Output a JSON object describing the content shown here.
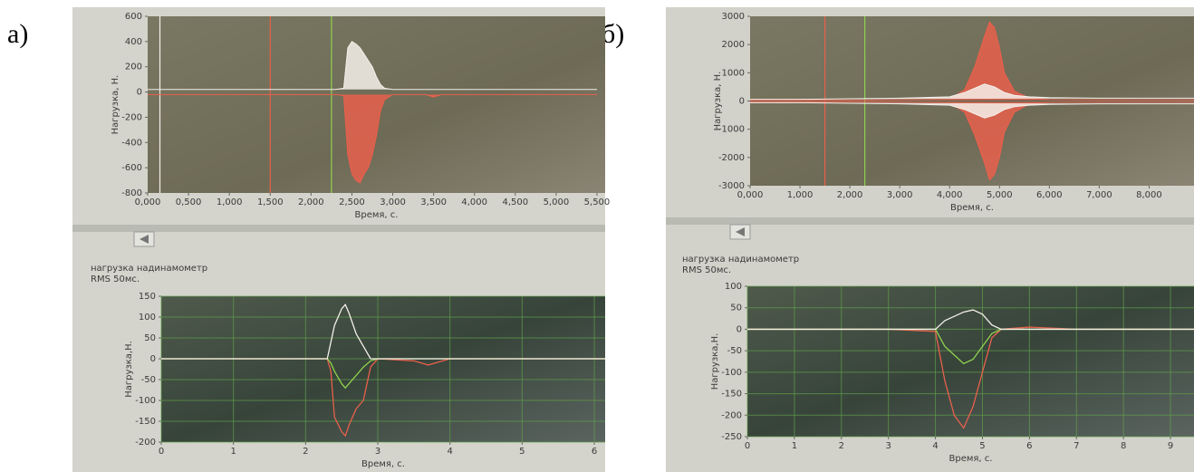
{
  "panel_labels": [
    "а)",
    "б)"
  ],
  "chart_data": [
    {
      "type": "area",
      "ylabel": "Нагрузка, Н.",
      "xlabel": "Время, с.",
      "grid": false,
      "xlim": [
        0,
        5.6
      ],
      "ylim": [
        -800,
        600
      ],
      "xticks": [
        {
          "value": 0,
          "label": "0,000"
        },
        {
          "value": 0.5,
          "label": "0,500"
        },
        {
          "value": 1,
          "label": "1,000"
        },
        {
          "value": 1.5,
          "label": "1,500"
        },
        {
          "value": 2,
          "label": "2,000"
        },
        {
          "value": 2.5,
          "label": "2,500"
        },
        {
          "value": 3,
          "label": "3,000"
        },
        {
          "value": 3.5,
          "label": "3,500"
        },
        {
          "value": 4,
          "label": "4,000"
        },
        {
          "value": 4.5,
          "label": "4,500"
        },
        {
          "value": 5,
          "label": "5,000"
        },
        {
          "value": 5.5,
          "label": "5,500"
        }
      ],
      "yticks": [
        600,
        400,
        200,
        0,
        -200,
        -400,
        -600,
        -800
      ],
      "cursors": [
        {
          "x": 0.15,
          "color": "#f4f0ea"
        },
        {
          "x": 1.5,
          "color": "#e8604c"
        },
        {
          "x": 2.25,
          "color": "#8fd14f"
        }
      ],
      "x": [
        0,
        0.5,
        1,
        1.5,
        2,
        2.3,
        2.4,
        2.45,
        2.5,
        2.55,
        2.6,
        2.65,
        2.7,
        2.75,
        2.8,
        2.85,
        2.9,
        3,
        3.4,
        3.5,
        3.6,
        4,
        4.5,
        5,
        5.5
      ],
      "series": [
        {
          "color": "#e8604c",
          "values": [
            -20,
            -20,
            -20,
            -20,
            -20,
            -20,
            -30,
            -500,
            -650,
            -700,
            -720,
            -650,
            -600,
            -500,
            -350,
            -150,
            -60,
            -20,
            -20,
            -40,
            -20,
            -20,
            -20,
            -20,
            -20
          ]
        },
        {
          "color": "#f4f0ea",
          "values": [
            20,
            20,
            20,
            20,
            20,
            20,
            30,
            350,
            400,
            380,
            350,
            300,
            250,
            200,
            120,
            60,
            30,
            20,
            20,
            20,
            20,
            20,
            20,
            20,
            20
          ]
        }
      ]
    },
    {
      "type": "area",
      "ylabel": "Нагрузка, Н.",
      "xlabel": "Время, с.",
      "grid": false,
      "xlim": [
        0,
        8.9
      ],
      "ylim": [
        -3000,
        3000
      ],
      "xticks": [
        {
          "value": 0,
          "label": "0,000"
        },
        {
          "value": 1,
          "label": "1,000"
        },
        {
          "value": 2,
          "label": "2,000"
        },
        {
          "value": 3,
          "label": "3,000"
        },
        {
          "value": 4,
          "label": "4,000"
        },
        {
          "value": 5,
          "label": "5,000"
        },
        {
          "value": 6,
          "label": "6,000"
        },
        {
          "value": 7,
          "label": "7,000"
        },
        {
          "value": 8,
          "label": "8,000"
        }
      ],
      "yticks": [
        3000,
        2000,
        1000,
        0,
        -1000,
        -2000,
        -3000
      ],
      "cursors": [
        {
          "x": 1.5,
          "color": "#e8604c"
        },
        {
          "x": 2.3,
          "color": "#8fd14f"
        }
      ],
      "x": [
        0,
        1,
        2,
        3,
        4,
        4.3,
        4.5,
        4.7,
        4.8,
        4.9,
        5,
        5.1,
        5.3,
        5.6,
        6,
        7,
        8,
        8.9
      ],
      "series": [
        {
          "color": "#e8604c",
          "values": [
            -30,
            -30,
            -30,
            -40,
            -60,
            -400,
            -1200,
            -2200,
            -2800,
            -2600,
            -2000,
            -1100,
            -400,
            -100,
            -50,
            -40,
            -40,
            -40
          ]
        },
        {
          "color": "#e8604c",
          "values": [
            30,
            30,
            30,
            40,
            60,
            400,
            1200,
            2300,
            2800,
            2600,
            1900,
            1000,
            350,
            100,
            50,
            40,
            40,
            40
          ]
        },
        {
          "color": "#f4f0ea",
          "values": [
            60,
            60,
            80,
            100,
            150,
            300,
            450,
            600,
            550,
            500,
            400,
            300,
            200,
            150,
            120,
            100,
            100,
            100
          ]
        },
        {
          "color": "#f4f0ea",
          "values": [
            -60,
            -60,
            -80,
            -100,
            -150,
            -300,
            -450,
            -600,
            -550,
            -500,
            -400,
            -300,
            -200,
            -150,
            -120,
            -100,
            -100,
            -100
          ]
        }
      ]
    },
    {
      "type": "line",
      "subtitle": [
        "нагрузка надинамометр",
        "RMS 50мс."
      ],
      "ylabel": "Нагрузка,Н.",
      "xlabel": "Время, с.",
      "grid": true,
      "xlim": [
        0,
        6.15
      ],
      "ylim": [
        -200,
        150
      ],
      "xticks": [
        0,
        1,
        2,
        3,
        4,
        5,
        6
      ],
      "yticks": [
        150,
        100,
        50,
        0,
        -50,
        -100,
        -150,
        -200
      ],
      "x": [
        0,
        0.5,
        1,
        1.5,
        2,
        2.3,
        2.35,
        2.4,
        2.5,
        2.55,
        2.6,
        2.7,
        2.8,
        2.9,
        3,
        3.5,
        3.7,
        4,
        5,
        6.15
      ],
      "series": [
        {
          "color": "#e8604c",
          "values": [
            0,
            0,
            0,
            0,
            0,
            0,
            -30,
            -140,
            -175,
            -185,
            -160,
            -120,
            -100,
            -20,
            0,
            -5,
            -15,
            0,
            0,
            0
          ]
        },
        {
          "color": "#8fd14f",
          "values": [
            0,
            0,
            0,
            0,
            0,
            0,
            -10,
            -30,
            -60,
            -70,
            -60,
            -40,
            -20,
            -5,
            0,
            0,
            0,
            0,
            0,
            0
          ]
        },
        {
          "color": "#f4f0ea",
          "values": [
            0,
            0,
            0,
            0,
            0,
            0,
            40,
            80,
            120,
            130,
            110,
            60,
            30,
            0,
            0,
            0,
            0,
            0,
            0,
            0
          ]
        }
      ]
    },
    {
      "type": "line",
      "subtitle": [
        "нагрузка надинамометр",
        "RMS 50мс."
      ],
      "ylabel": "Нагрузка,Н.",
      "xlabel": "Время, с.",
      "grid": true,
      "xlim": [
        0,
        9.5
      ],
      "ylim": [
        -250,
        100
      ],
      "xticks": [
        0,
        1,
        2,
        3,
        4,
        5,
        6,
        7,
        8,
        9
      ],
      "yticks": [
        100,
        50,
        0,
        -50,
        -100,
        -150,
        -200,
        -250
      ],
      "x": [
        0,
        1,
        2,
        3,
        4,
        4.2,
        4.4,
        4.6,
        4.8,
        5,
        5.2,
        5.4,
        6,
        7,
        8,
        9,
        9.5
      ],
      "series": [
        {
          "color": "#e8604c",
          "values": [
            0,
            0,
            0,
            0,
            -5,
            -120,
            -200,
            -230,
            -180,
            -100,
            -20,
            0,
            5,
            0,
            0,
            0,
            0
          ]
        },
        {
          "color": "#8fd14f",
          "values": [
            0,
            0,
            0,
            0,
            0,
            -40,
            -60,
            -80,
            -70,
            -40,
            -10,
            0,
            0,
            0,
            0,
            0,
            0
          ]
        },
        {
          "color": "#f4f0ea",
          "values": [
            0,
            0,
            0,
            0,
            0,
            20,
            30,
            40,
            45,
            35,
            10,
            0,
            0,
            0,
            0,
            0,
            0
          ]
        }
      ]
    }
  ]
}
